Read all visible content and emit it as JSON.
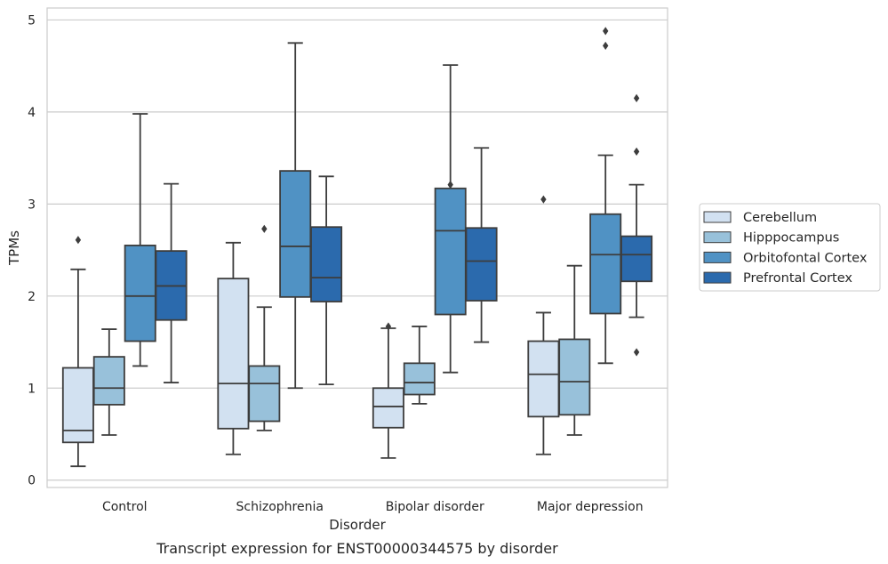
{
  "chart_data": {
    "type": "boxplot",
    "caption": "Transcript expression for ENST00000344575 by disorder",
    "xlabel": "Disorder",
    "ylabel": "TPMs",
    "ylim": [
      -0.08,
      5.13
    ],
    "yticks": [
      0,
      1,
      2,
      3,
      4,
      5
    ],
    "ytick_labels": [
      "0",
      "1",
      "2",
      "3",
      "4",
      "5"
    ],
    "grid": "horizontal",
    "legend_position": "right",
    "categories": [
      "Control",
      "Schizophrenia",
      "Bipolar disorder",
      "Major depression"
    ],
    "series": [
      {
        "name": "Cerebellum",
        "color": "#d2e1f1",
        "boxes": [
          {
            "whisker_low": 0.15,
            "q1": 0.41,
            "median": 0.54,
            "q3": 1.22,
            "whisker_high": 2.29,
            "outliers": [
              2.61
            ]
          },
          {
            "whisker_low": 0.28,
            "q1": 0.56,
            "median": 1.05,
            "q3": 2.19,
            "whisker_high": 2.58,
            "outliers": []
          },
          {
            "whisker_low": 0.24,
            "q1": 0.57,
            "median": 0.8,
            "q3": 1.0,
            "whisker_high": 1.65,
            "outliers": [
              1.67
            ]
          },
          {
            "whisker_low": 0.28,
            "q1": 0.69,
            "median": 1.15,
            "q3": 1.51,
            "whisker_high": 1.82,
            "outliers": [
              3.05
            ]
          }
        ]
      },
      {
        "name": "Hipppocampus",
        "color": "#98c1da",
        "boxes": [
          {
            "whisker_low": 0.49,
            "q1": 0.82,
            "median": 1.0,
            "q3": 1.34,
            "whisker_high": 1.64,
            "outliers": []
          },
          {
            "whisker_low": 0.54,
            "q1": 0.64,
            "median": 1.05,
            "q3": 1.24,
            "whisker_high": 1.88,
            "outliers": [
              2.73
            ]
          },
          {
            "whisker_low": 0.83,
            "q1": 0.93,
            "median": 1.06,
            "q3": 1.27,
            "whisker_high": 1.67,
            "outliers": []
          },
          {
            "whisker_low": 0.49,
            "q1": 0.71,
            "median": 1.07,
            "q3": 1.53,
            "whisker_high": 2.33,
            "outliers": []
          }
        ]
      },
      {
        "name": "Orbitofontal Cortex",
        "color": "#5092c4",
        "boxes": [
          {
            "whisker_low": 1.24,
            "q1": 1.51,
            "median": 2.0,
            "q3": 2.55,
            "whisker_high": 3.98,
            "outliers": []
          },
          {
            "whisker_low": 1.0,
            "q1": 1.99,
            "median": 2.54,
            "q3": 3.36,
            "whisker_high": 4.75,
            "outliers": []
          },
          {
            "whisker_low": 1.17,
            "q1": 1.8,
            "median": 2.71,
            "q3": 3.17,
            "whisker_high": 4.51,
            "outliers": [
              3.21
            ]
          },
          {
            "whisker_low": 1.27,
            "q1": 1.81,
            "median": 2.45,
            "q3": 2.89,
            "whisker_high": 3.53,
            "outliers": [
              4.72,
              4.88
            ]
          }
        ]
      },
      {
        "name": "Prefrontal Cortex",
        "color": "#2b6aad",
        "boxes": [
          {
            "whisker_low": 1.06,
            "q1": 1.74,
            "median": 2.11,
            "q3": 2.49,
            "whisker_high": 3.22,
            "outliers": []
          },
          {
            "whisker_low": 1.04,
            "q1": 1.94,
            "median": 2.2,
            "q3": 2.75,
            "whisker_high": 3.3,
            "outliers": []
          },
          {
            "whisker_low": 1.5,
            "q1": 1.95,
            "median": 2.38,
            "q3": 2.74,
            "whisker_high": 3.61,
            "outliers": []
          },
          {
            "whisker_low": 1.77,
            "q1": 2.16,
            "median": 2.45,
            "q3": 2.65,
            "whisker_high": 3.21,
            "outliers": [
              1.39,
              3.57,
              4.15
            ]
          }
        ]
      }
    ]
  }
}
